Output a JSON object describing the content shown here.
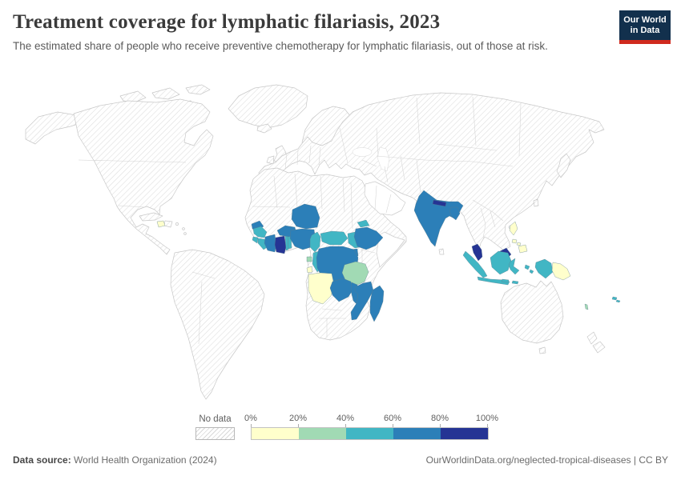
{
  "header": {
    "title": "Treatment coverage for lymphatic filariasis, 2023",
    "subtitle": "The estimated share of people who receive preventive chemotherapy for lymphatic filariasis, out of those at risk."
  },
  "logo": {
    "line1": "Our World",
    "line2": "in Data",
    "bg_color": "#12304d",
    "stripe_color": "#d02a1e"
  },
  "legend": {
    "no_data_label": "No data",
    "tick_labels": [
      "0%",
      "20%",
      "40%",
      "60%",
      "80%",
      "100%"
    ]
  },
  "footer": {
    "source_label": "Data source:",
    "source_value": " World Health Organization (2024)",
    "credit": "OurWorldinData.org/neglected-tropical-diseases | CC BY"
  },
  "chart_data": {
    "type": "choropleth_map",
    "title": "Treatment coverage for lymphatic filariasis, 2023",
    "subtitle": "The estimated share of people who receive preventive chemotherapy for lymphatic filariasis, out of those at risk.",
    "year": 2023,
    "unit": "share of people at risk",
    "no_data_style": "diagonal-hatch",
    "bins": [
      {
        "range": "0-20%",
        "color": "#ffffcc"
      },
      {
        "range": "20-40%",
        "color": "#a1dab4"
      },
      {
        "range": "40-60%",
        "color": "#41b6c4"
      },
      {
        "range": "60-80%",
        "color": "#2c7fb8"
      },
      {
        "range": "80-100%",
        "color": "#253494"
      }
    ],
    "countries": [
      {
        "name": "haiti",
        "bucket": "0-20%"
      },
      {
        "name": "senegal",
        "bucket": "60-80%"
      },
      {
        "name": "guinea",
        "bucket": "40-60%"
      },
      {
        "name": "sierra-leone",
        "bucket": "40-60%"
      },
      {
        "name": "liberia",
        "bucket": "40-60%"
      },
      {
        "name": "cote-d-ivoire",
        "bucket": "60-80%"
      },
      {
        "name": "ghana",
        "bucket": "80-100%"
      },
      {
        "name": "togo",
        "bucket": "40-60%"
      },
      {
        "name": "benin",
        "bucket": "40-60%"
      },
      {
        "name": "burkina-faso",
        "bucket": "60-80%"
      },
      {
        "name": "niger",
        "bucket": "60-80%"
      },
      {
        "name": "nigeria",
        "bucket": "60-80%"
      },
      {
        "name": "cameroon",
        "bucket": "40-60%"
      },
      {
        "name": "equatorial-guinea",
        "bucket": "20-40%"
      },
      {
        "name": "central-african-republic",
        "bucket": "40-60%"
      },
      {
        "name": "south-sudan",
        "bucket": "40-60%"
      },
      {
        "name": "eritrea",
        "bucket": "40-60%"
      },
      {
        "name": "ethiopia",
        "bucket": "60-80%"
      },
      {
        "name": "uganda",
        "bucket": "60-80%"
      },
      {
        "name": "congo",
        "bucket": "40-60%"
      },
      {
        "name": "democratic-republic-of-congo",
        "bucket": "60-80%"
      },
      {
        "name": "tanzania",
        "bucket": "20-40%"
      },
      {
        "name": "angola",
        "bucket": "0-20%"
      },
      {
        "name": "zambia",
        "bucket": "60-80%"
      },
      {
        "name": "malawi",
        "bucket": "60-80%"
      },
      {
        "name": "mozambique",
        "bucket": "60-80%"
      },
      {
        "name": "madagascar",
        "bucket": "60-80%"
      },
      {
        "name": "india",
        "bucket": "60-80%"
      },
      {
        "name": "nepal",
        "bucket": "80-100%"
      },
      {
        "name": "bangladesh",
        "bucket": "60-80%"
      },
      {
        "name": "malaysia",
        "bucket": "80-100%"
      },
      {
        "name": "indonesia",
        "bucket": "40-60%"
      },
      {
        "name": "philippines",
        "bucket": "0-20%"
      },
      {
        "name": "papua-new-guinea",
        "bucket": "0-20%"
      },
      {
        "name": "fiji",
        "bucket": "40-60%"
      },
      {
        "name": "vanuatu",
        "bucket": "20-40%"
      }
    ]
  }
}
